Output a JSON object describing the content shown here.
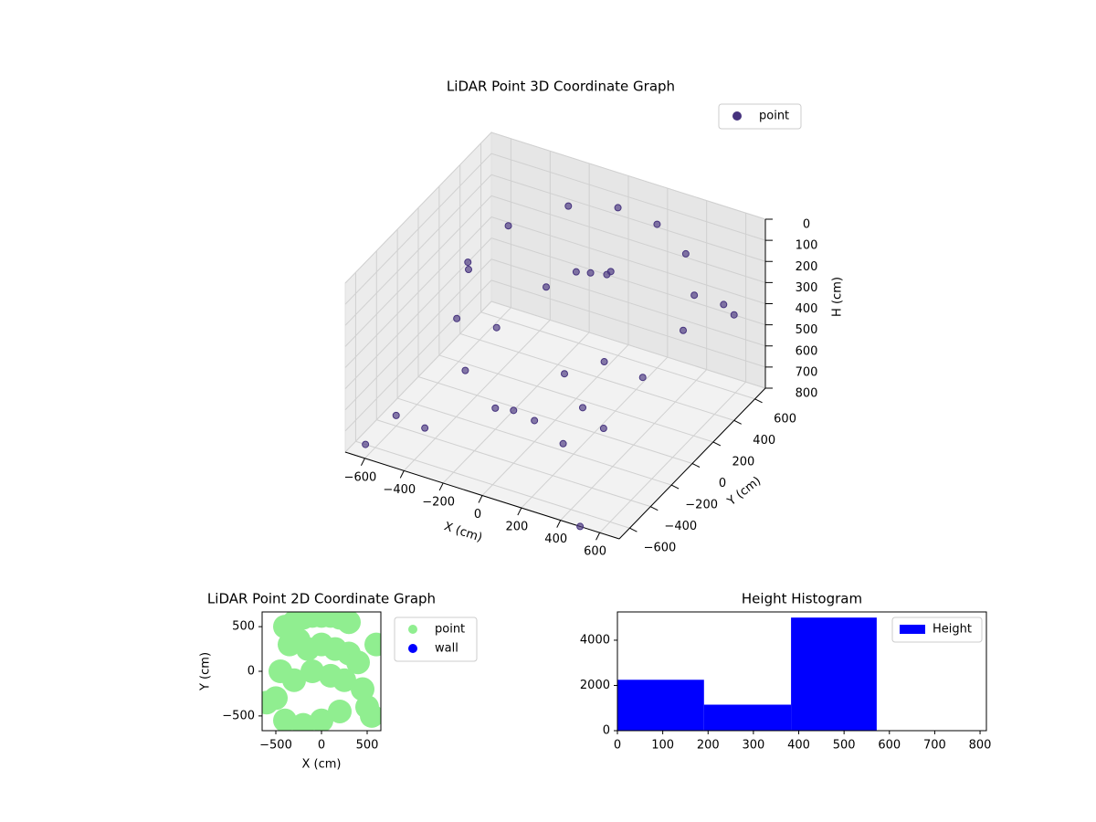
{
  "chart_data": [
    {
      "type": "scatter3d",
      "title": "LiDAR Point 3D Coordinate Graph",
      "xlabel": "X (cm)",
      "ylabel": "Y (cm)",
      "zlabel": "H (cm)",
      "series": [
        {
          "name": "point",
          "color": "#46337e",
          "x": [
            -400,
            -200,
            0,
            200,
            400,
            550,
            600,
            -500,
            -450,
            -300,
            0,
            300,
            500,
            0,
            100,
            -100,
            150,
            -200,
            0,
            200,
            300,
            -600,
            -650,
            500,
            700,
            700,
            -400,
            -300,
            100,
            250,
            -550,
            50
          ],
          "y": [
            300,
            500,
            600,
            600,
            500,
            300,
            100,
            100,
            -100,
            -300,
            -400,
            -300,
            -100,
            200,
            150,
            100,
            250,
            -200,
            -200,
            -300,
            -100,
            -400,
            -600,
            -700,
            300,
            400,
            -500,
            0,
            -100,
            0,
            200,
            400
          ],
          "z": [
            150,
            100,
            100,
            120,
            150,
            200,
            250,
            250,
            400,
            500,
            550,
            500,
            400,
            200,
            150,
            250,
            180,
            700,
            700,
            700,
            700,
            750,
            800,
            800,
            200,
            300,
            700,
            450,
            500,
            450,
            350,
            300
          ]
        }
      ],
      "xlim": [
        -700,
        700
      ],
      "ylim": [
        -700,
        700
      ],
      "zlim": [
        800,
        0
      ],
      "xticks": [
        {
          "value": -600,
          "label": "−600"
        },
        {
          "value": -400,
          "label": "−400"
        },
        {
          "value": -200,
          "label": "−200"
        },
        0,
        200,
        400,
        600
      ],
      "yticks": [
        {
          "value": -600,
          "label": "−600"
        },
        {
          "value": -400,
          "label": "−400"
        },
        {
          "value": -200,
          "label": "−200"
        },
        0,
        200,
        400,
        600
      ],
      "zticks": [
        0,
        100,
        200,
        300,
        400,
        500,
        600,
        700,
        800
      ],
      "legend": "upper right"
    },
    {
      "type": "scatter",
      "title": "LiDAR Point 2D Coordinate Graph",
      "xlabel": "X (cm)",
      "ylabel": "Y (cm)",
      "series": [
        {
          "name": "point",
          "color": "#90ee90",
          "x": [
            -400,
            -300,
            -200,
            -100,
            0,
            100,
            200,
            300,
            -350,
            -250,
            -150,
            0,
            150,
            300,
            400,
            -450,
            -300,
            -100,
            100,
            250,
            450,
            -500,
            -600,
            500,
            550,
            -400,
            200,
            600,
            0,
            -200
          ],
          "y": [
            500,
            550,
            600,
            620,
            620,
            620,
            600,
            550,
            300,
            350,
            250,
            300,
            250,
            200,
            100,
            0,
            -100,
            0,
            -50,
            -100,
            -200,
            -300,
            -350,
            -400,
            -500,
            -550,
            -450,
            300,
            -550,
            -600
          ]
        },
        {
          "name": "wall",
          "color": "#0000ff",
          "x": [],
          "y": []
        }
      ],
      "xlim": [
        -650,
        650
      ],
      "ylim": [
        -665,
        665
      ],
      "xticks": [
        {
          "value": -500,
          "label": "−500"
        },
        0,
        500
      ],
      "yticks": [
        {
          "value": -500,
          "label": "−500"
        },
        0,
        500
      ],
      "legend": "outside right"
    },
    {
      "type": "histogram",
      "title": "Height Histogram",
      "name": "Height",
      "color": "#0000ff",
      "bins": [
        0,
        191,
        383,
        572,
        764
      ],
      "values": [
        2250,
        1150,
        5000,
        0
      ],
      "xlim": [
        0,
        814
      ],
      "ylim": [
        0,
        5250
      ],
      "xticks": [
        0,
        100,
        200,
        300,
        400,
        500,
        600,
        700,
        800
      ],
      "yticks": [
        0,
        2000,
        4000
      ],
      "legend": "upper right"
    }
  ]
}
